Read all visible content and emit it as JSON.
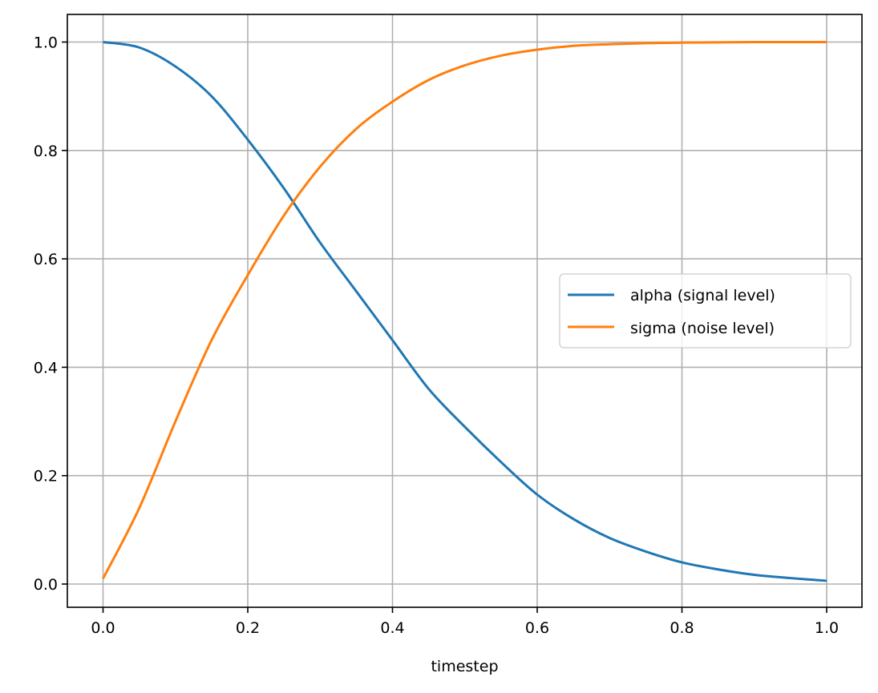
{
  "chart_data": {
    "type": "line",
    "title": "",
    "xlabel": "timestep",
    "ylabel": "",
    "xlim": [
      -0.05,
      1.05
    ],
    "ylim": [
      -0.045,
      1.05
    ],
    "grid": true,
    "legend_position": "center right",
    "x_ticks": [
      "0.0",
      "0.2",
      "0.4",
      "0.6",
      "0.8",
      "1.0"
    ],
    "y_ticks": [
      "0.0",
      "0.2",
      "0.4",
      "0.6",
      "0.8",
      "1.0"
    ],
    "x": [
      0.0,
      0.05,
      0.1,
      0.15,
      0.2,
      0.25,
      0.3,
      0.35,
      0.4,
      0.45,
      0.5,
      0.55,
      0.6,
      0.65,
      0.7,
      0.75,
      0.8,
      0.85,
      0.9,
      0.95,
      1.0
    ],
    "series": [
      {
        "name": "alpha (signal level)",
        "color": "#1f77b4",
        "values": [
          1.0,
          0.99,
          0.955,
          0.9,
          0.82,
          0.73,
          0.63,
          0.54,
          0.45,
          0.36,
          0.29,
          0.225,
          0.165,
          0.12,
          0.085,
          0.06,
          0.04,
          0.027,
          0.017,
          0.011,
          0.006
        ]
      },
      {
        "name": "sigma (noise level)",
        "color": "#ff7f0e",
        "values": [
          0.01,
          0.14,
          0.3,
          0.45,
          0.57,
          0.68,
          0.77,
          0.84,
          0.89,
          0.93,
          0.957,
          0.975,
          0.986,
          0.993,
          0.996,
          0.998,
          0.999,
          0.9995,
          1.0,
          1.0,
          1.0
        ]
      }
    ]
  },
  "legend": {
    "items": [
      {
        "label": "alpha (signal level)",
        "color": "#1f77b4"
      },
      {
        "label": "sigma (noise level)",
        "color": "#ff7f0e"
      }
    ]
  },
  "axes": {
    "xlabel": "timestep"
  }
}
